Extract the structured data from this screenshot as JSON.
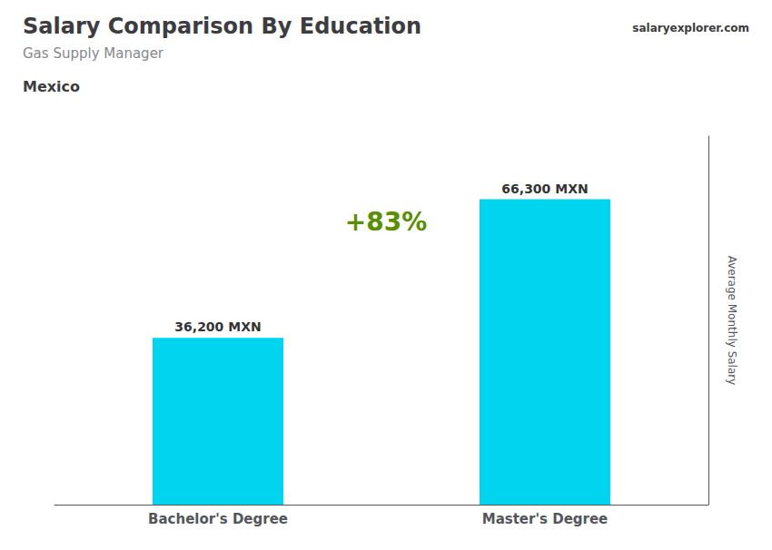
{
  "chart_data": {
    "type": "bar",
    "title": "Salary Comparison By Education",
    "subtitle": "Gas Supply Manager",
    "country": "Mexico",
    "source": "salaryexplorer.com",
    "categories": [
      "Bachelor's Degree",
      "Master's Degree"
    ],
    "values": [
      36200,
      66300
    ],
    "value_labels": [
      "36,200 MXN",
      "66,300 MXN"
    ],
    "data_labels": true,
    "color": "#00D4EE",
    "ylabel": "Average Monthly Salary",
    "ylim": [
      0,
      80000
    ],
    "tick_labels": "x",
    "grid": false,
    "annotations": [
      "+83%"
    ]
  }
}
